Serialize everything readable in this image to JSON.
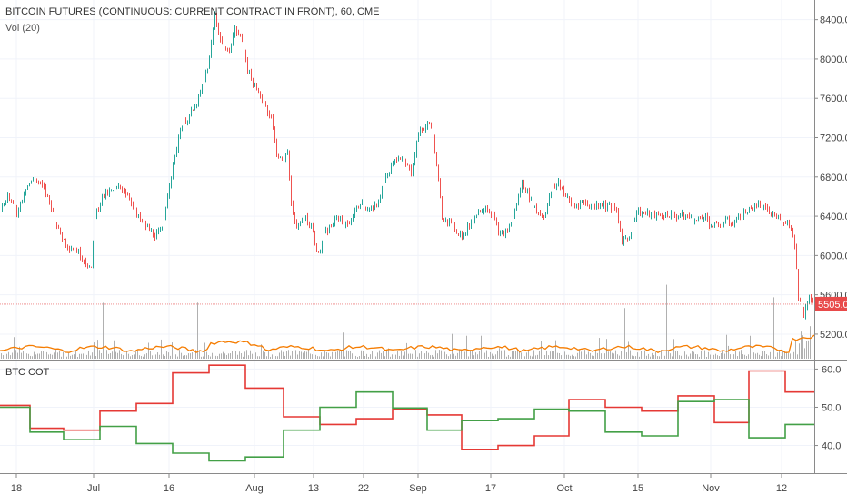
{
  "chart_data": [
    {
      "type": "candlestick",
      "title": "BITCOIN FUTURES (CONTINUOUS: CURRENT CONTRACT IN FRONT), 60, CME",
      "timeframe": "60",
      "exchange": "CME",
      "ylim": [
        4950,
        8600
      ],
      "y_ticks": [
        "5200.0",
        "5600.0",
        "6000.0",
        "6400.0",
        "6800.0",
        "7200.0",
        "7600.0",
        "8000.0",
        "8400.0"
      ],
      "price_label": "5505.0",
      "price_line": 5505,
      "close_series": [
        [
          0,
          6450
        ],
        [
          8,
          6620
        ],
        [
          18,
          6430
        ],
        [
          28,
          6700
        ],
        [
          38,
          6780
        ],
        [
          48,
          6680
        ],
        [
          56,
          6500
        ],
        [
          64,
          6250
        ],
        [
          74,
          6100
        ],
        [
          84,
          6050
        ],
        [
          93,
          5950
        ],
        [
          100,
          5850
        ],
        [
          104,
          6400
        ],
        [
          112,
          6600
        ],
        [
          122,
          6650
        ],
        [
          132,
          6700
        ],
        [
          142,
          6600
        ],
        [
          150,
          6400
        ],
        [
          160,
          6300
        ],
        [
          170,
          6200
        ],
        [
          178,
          6250
        ],
        [
          185,
          6700
        ],
        [
          192,
          7000
        ],
        [
          198,
          7300
        ],
        [
          206,
          7400
        ],
        [
          214,
          7500
        ],
        [
          222,
          7700
        ],
        [
          230,
          8000
        ],
        [
          236,
          8450
        ],
        [
          242,
          8200
        ],
        [
          250,
          8050
        ],
        [
          258,
          8300
        ],
        [
          266,
          8200
        ],
        [
          272,
          7900
        ],
        [
          280,
          7700
        ],
        [
          288,
          7600
        ],
        [
          298,
          7400
        ],
        [
          304,
          7050
        ],
        [
          310,
          6950
        ],
        [
          316,
          7050
        ],
        [
          320,
          6550
        ],
        [
          326,
          6250
        ],
        [
          334,
          6400
        ],
        [
          342,
          6300
        ],
        [
          350,
          6000
        ],
        [
          356,
          6200
        ],
        [
          364,
          6300
        ],
        [
          372,
          6400
        ],
        [
          380,
          6300
        ],
        [
          388,
          6400
        ],
        [
          396,
          6550
        ],
        [
          404,
          6450
        ],
        [
          414,
          6500
        ],
        [
          424,
          6800
        ],
        [
          434,
          7000
        ],
        [
          444,
          6950
        ],
        [
          452,
          6850
        ],
        [
          460,
          7250
        ],
        [
          466,
          7300
        ],
        [
          474,
          7350
        ],
        [
          480,
          6900
        ],
        [
          486,
          6400
        ],
        [
          494,
          6350
        ],
        [
          502,
          6250
        ],
        [
          510,
          6200
        ],
        [
          518,
          6350
        ],
        [
          526,
          6450
        ],
        [
          534,
          6500
        ],
        [
          542,
          6400
        ],
        [
          550,
          6200
        ],
        [
          558,
          6250
        ],
        [
          566,
          6450
        ],
        [
          574,
          6750
        ],
        [
          582,
          6600
        ],
        [
          590,
          6450
        ],
        [
          598,
          6400
        ],
        [
          606,
          6650
        ],
        [
          614,
          6750
        ],
        [
          622,
          6600
        ],
        [
          630,
          6500
        ],
        [
          640,
          6550
        ],
        [
          650,
          6500
        ],
        [
          660,
          6530
        ],
        [
          670,
          6500
        ],
        [
          678,
          6450
        ],
        [
          684,
          6150
        ],
        [
          692,
          6200
        ],
        [
          700,
          6450
        ],
        [
          708,
          6430
        ],
        [
          716,
          6420
        ],
        [
          726,
          6400
        ],
        [
          736,
          6420
        ],
        [
          746,
          6400
        ],
        [
          756,
          6400
        ],
        [
          766,
          6350
        ],
        [
          774,
          6420
        ],
        [
          782,
          6300
        ],
        [
          790,
          6300
        ],
        [
          798,
          6350
        ],
        [
          806,
          6330
        ],
        [
          814,
          6400
        ],
        [
          822,
          6450
        ],
        [
          832,
          6520
        ],
        [
          840,
          6480
        ],
        [
          848,
          6420
        ],
        [
          856,
          6380
        ],
        [
          864,
          6350
        ],
        [
          870,
          6300
        ],
        [
          874,
          6100
        ],
        [
          878,
          5600
        ],
        [
          884,
          5400
        ],
        [
          890,
          5600
        ],
        [
          896,
          5505
        ]
      ]
    },
    {
      "type": "bar",
      "title": "Vol (20)",
      "note": "volume histogram with 20-period moving average (orange)"
    },
    {
      "type": "line",
      "title": "BTC COT",
      "ylim": [
        33,
        62
      ],
      "y_ticks": [
        "40.0",
        "50.0",
        "60.0"
      ],
      "series": [
        {
          "color": "#e53935",
          "steps": [
            [
              0,
              50.5
            ],
            [
              33,
              44.5
            ],
            [
              70,
              44.0
            ],
            [
              110,
              49.0
            ],
            [
              150,
              51.0
            ],
            [
              190,
              59.0
            ],
            [
              230,
              61.0
            ],
            [
              270,
              55.0
            ],
            [
              312,
              47.5
            ],
            [
              352,
              45.5
            ],
            [
              392,
              47.0
            ],
            [
              432,
              49.5
            ],
            [
              470,
              48.0
            ],
            [
              508,
              39.0
            ],
            [
              548,
              40.0
            ],
            [
              588,
              42.5
            ],
            [
              626,
              52.0
            ],
            [
              666,
              50.0
            ],
            [
              706,
              49.0
            ],
            [
              746,
              53.0
            ],
            [
              786,
              46.0
            ],
            [
              824,
              59.5
            ],
            [
              864,
              54.0
            ],
            [
              896,
              54.0
            ]
          ]
        },
        {
          "color": "#43a047",
          "steps": [
            [
              0,
              50.0
            ],
            [
              33,
              43.5
            ],
            [
              70,
              41.5
            ],
            [
              110,
              45.0
            ],
            [
              150,
              40.5
            ],
            [
              190,
              38.0
            ],
            [
              230,
              36.0
            ],
            [
              270,
              37.0
            ],
            [
              312,
              44.0
            ],
            [
              352,
              50.0
            ],
            [
              392,
              54.0
            ],
            [
              432,
              49.8
            ],
            [
              470,
              44.0
            ],
            [
              508,
              46.5
            ],
            [
              548,
              47.0
            ],
            [
              588,
              49.5
            ],
            [
              626,
              49.0
            ],
            [
              666,
              43.5
            ],
            [
              706,
              42.5
            ],
            [
              746,
              51.5
            ],
            [
              786,
              52.0
            ],
            [
              824,
              42.0
            ],
            [
              864,
              45.5
            ],
            [
              896,
              45.5
            ]
          ]
        }
      ]
    }
  ],
  "x_axis": {
    "ticks": [
      {
        "label": "18",
        "pos": 18
      },
      {
        "label": "Jul",
        "pos": 103
      },
      {
        "label": "16",
        "pos": 186
      },
      {
        "label": "Aug",
        "pos": 280
      },
      {
        "label": "13",
        "pos": 345
      },
      {
        "label": "22",
        "pos": 400
      },
      {
        "label": "Sep",
        "pos": 460
      },
      {
        "label": "17",
        "pos": 540
      },
      {
        "label": "Oct",
        "pos": 621
      },
      {
        "label": "15",
        "pos": 702
      },
      {
        "label": "Nov",
        "pos": 782
      },
      {
        "label": "12",
        "pos": 860
      }
    ]
  },
  "colors": {
    "up": "#26a69a",
    "down": "#ef5350",
    "volume": "#b0b0b0",
    "volume_ma": "#f57c00",
    "price_tag": "#e84a4a",
    "grid": "#f0f3fa"
  }
}
